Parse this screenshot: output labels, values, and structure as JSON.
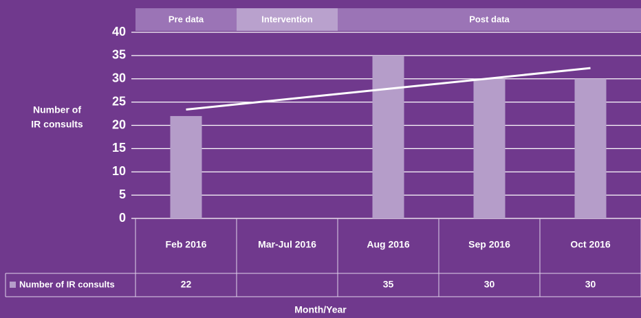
{
  "chart_data": {
    "type": "bar",
    "x_label": "Month/Year",
    "y_label": [
      "Number of",
      "IR consults"
    ],
    "phases": [
      "Pre data",
      "Intervention",
      "Post data"
    ],
    "phase_colors": [
      "#9b74b6",
      "#b9a1cd",
      "#9b74b6"
    ],
    "categories": [
      "Feb 2016",
      "Mar-Jul 2016",
      "Aug 2016",
      "Sep 2016",
      "Oct 2016"
    ],
    "series": [
      {
        "name": "Number of IR consults",
        "color": "#b59dc9",
        "values": [
          22,
          null,
          35,
          30,
          30
        ]
      }
    ],
    "trendline": [
      23.4,
      32.3
    ],
    "ylim": [
      0,
      40
    ],
    "yticks": [
      0,
      5,
      10,
      15,
      20,
      25,
      30,
      35,
      40
    ],
    "grid": true
  }
}
